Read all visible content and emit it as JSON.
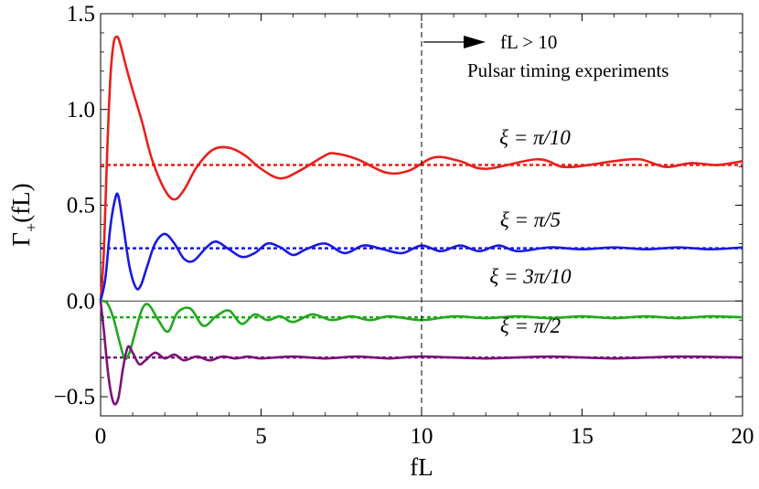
{
  "chart_data": {
    "type": "line",
    "title": "",
    "xlabel": "fL",
    "ylabel": "Γ+(fL)",
    "xlim": [
      0,
      20
    ],
    "ylim": [
      -0.6,
      1.5
    ],
    "x_ticks": [
      0,
      5,
      10,
      15,
      20
    ],
    "x_tick_labels": [
      "0",
      "5",
      "10",
      "15",
      "20"
    ],
    "y_ticks": [
      -0.5,
      0.0,
      0.5,
      1.0,
      1.5
    ],
    "y_tick_labels": [
      "−0.5",
      "0.0",
      "0.5",
      "1.0",
      "1.5"
    ],
    "grid": false,
    "vertical_marker": {
      "x": 10,
      "style": "dashed"
    },
    "annotations": {
      "arrow_text": "fL > 10",
      "experiment_text": "Pulsar timing experiments"
    },
    "series": [
      {
        "label": "ξ = π/10",
        "color": "#e8201c",
        "asymptote": 0.71,
        "x": [
          0,
          0.1,
          0.2,
          0.3,
          0.4,
          0.5,
          0.6,
          0.8,
          1.0,
          1.3,
          1.6,
          2.0,
          2.3,
          2.6,
          3.0,
          3.5,
          4.0,
          4.5,
          5.0,
          5.6,
          6.2,
          7.0,
          7.3,
          8.0,
          8.9,
          9.6,
          10.4,
          11.2,
          12.0,
          13.6,
          14.4,
          15.2,
          16.0,
          16.8,
          17.6,
          18.4,
          19.2,
          20.0
        ],
        "y": [
          0,
          0.25,
          0.75,
          1.15,
          1.34,
          1.38,
          1.35,
          1.22,
          1.1,
          0.93,
          0.74,
          0.58,
          0.53,
          0.58,
          0.7,
          0.79,
          0.8,
          0.76,
          0.69,
          0.64,
          0.68,
          0.76,
          0.77,
          0.74,
          0.67,
          0.68,
          0.75,
          0.73,
          0.69,
          0.74,
          0.7,
          0.71,
          0.73,
          0.74,
          0.7,
          0.72,
          0.71,
          0.73
        ]
      },
      {
        "label": "ξ = π/5",
        "color": "#1a1ae0",
        "asymptote": 0.275,
        "x": [
          0,
          0.15,
          0.3,
          0.45,
          0.55,
          0.7,
          0.9,
          1.1,
          1.25,
          1.45,
          1.7,
          2.0,
          2.3,
          2.6,
          2.9,
          3.3,
          3.6,
          4.0,
          4.4,
          4.8,
          5.2,
          5.6,
          6.0,
          6.4,
          7.0,
          7.6,
          8.2,
          8.8,
          9.4,
          10.0,
          10.6,
          11.2,
          11.8,
          12.4,
          13.0,
          14.0,
          15.0,
          16.0,
          17.0,
          18.0,
          19.0,
          20.0
        ],
        "y": [
          0,
          0.12,
          0.38,
          0.53,
          0.55,
          0.4,
          0.18,
          0.07,
          0.08,
          0.18,
          0.3,
          0.35,
          0.3,
          0.22,
          0.21,
          0.28,
          0.31,
          0.27,
          0.23,
          0.25,
          0.3,
          0.28,
          0.24,
          0.27,
          0.3,
          0.25,
          0.29,
          0.27,
          0.25,
          0.29,
          0.26,
          0.29,
          0.26,
          0.29,
          0.26,
          0.28,
          0.27,
          0.28,
          0.27,
          0.28,
          0.27,
          0.28
        ]
      },
      {
        "label": "ξ = 3π/10",
        "color": "#22a81e",
        "asymptote": -0.085,
        "x": [
          0,
          0.2,
          0.4,
          0.6,
          0.75,
          0.9,
          1.1,
          1.3,
          1.5,
          1.8,
          2.1,
          2.4,
          2.8,
          3.2,
          3.6,
          4.0,
          4.4,
          4.8,
          5.2,
          5.6,
          6.0,
          6.6,
          7.2,
          7.8,
          8.4,
          9.0,
          10.0,
          11.0,
          12.0,
          13.0,
          14.0,
          15.0,
          16.0,
          17.0,
          18.0,
          19.0,
          20.0
        ],
        "y": [
          0,
          -0.01,
          -0.09,
          -0.22,
          -0.3,
          -0.27,
          -0.15,
          -0.04,
          -0.02,
          -0.1,
          -0.16,
          -0.06,
          -0.04,
          -0.13,
          -0.08,
          -0.05,
          -0.12,
          -0.07,
          -0.1,
          -0.08,
          -0.11,
          -0.07,
          -0.1,
          -0.08,
          -0.1,
          -0.08,
          -0.1,
          -0.08,
          -0.09,
          -0.08,
          -0.09,
          -0.08,
          -0.09,
          -0.08,
          -0.09,
          -0.08,
          -0.085
        ]
      },
      {
        "label": "ξ = π/2",
        "color": "#7a137a",
        "asymptote": -0.295,
        "x": [
          0,
          0.1,
          0.25,
          0.4,
          0.55,
          0.7,
          0.85,
          1.0,
          1.2,
          1.4,
          1.7,
          2.0,
          2.3,
          2.6,
          3.0,
          3.4,
          3.8,
          4.2,
          4.6,
          5.0,
          6.0,
          7.0,
          8.0,
          9.0,
          10.0,
          12.0,
          14.0,
          16.0,
          18.0,
          20.0
        ],
        "y": [
          0,
          -0.15,
          -0.4,
          -0.53,
          -0.51,
          -0.35,
          -0.24,
          -0.27,
          -0.33,
          -0.31,
          -0.27,
          -0.3,
          -0.28,
          -0.31,
          -0.29,
          -0.31,
          -0.29,
          -0.3,
          -0.29,
          -0.3,
          -0.29,
          -0.3,
          -0.29,
          -0.3,
          -0.29,
          -0.3,
          -0.29,
          -0.3,
          -0.29,
          -0.295
        ]
      }
    ]
  }
}
